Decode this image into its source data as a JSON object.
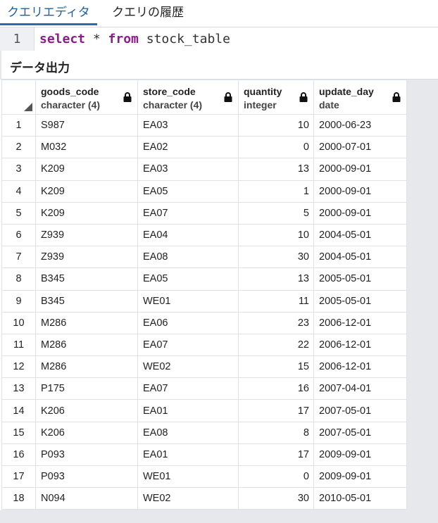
{
  "tabs": [
    {
      "label": "クエリエディタ",
      "active": true
    },
    {
      "label": "クエリの履歴",
      "active": false
    }
  ],
  "editor": {
    "line_number": "1",
    "tokens": [
      {
        "text": "select",
        "kind": "kw"
      },
      {
        "text": " * ",
        "kind": "txt"
      },
      {
        "text": "from",
        "kind": "kw"
      },
      {
        "text": " stock_table",
        "kind": "txt"
      }
    ]
  },
  "output": {
    "title": "データ出力",
    "columns": [
      {
        "name": "goods_code",
        "type": "character (4)"
      },
      {
        "name": "store_code",
        "type": "character (4)"
      },
      {
        "name": "quantity",
        "type": "integer"
      },
      {
        "name": "update_day",
        "type": "date"
      }
    ],
    "rows": [
      [
        "1",
        "S987",
        "EA03",
        "10",
        "2000-06-23"
      ],
      [
        "2",
        "M032",
        "EA02",
        "0",
        "2000-07-01"
      ],
      [
        "3",
        "K209",
        "EA03",
        "13",
        "2000-09-01"
      ],
      [
        "4",
        "K209",
        "EA05",
        "1",
        "2000-09-01"
      ],
      [
        "5",
        "K209",
        "EA07",
        "5",
        "2000-09-01"
      ],
      [
        "6",
        "Z939",
        "EA04",
        "10",
        "2004-05-01"
      ],
      [
        "7",
        "Z939",
        "EA08",
        "30",
        "2004-05-01"
      ],
      [
        "8",
        "B345",
        "EA05",
        "13",
        "2005-05-01"
      ],
      [
        "9",
        "B345",
        "WE01",
        "11",
        "2005-05-01"
      ],
      [
        "10",
        "M286",
        "EA06",
        "23",
        "2006-12-01"
      ],
      [
        "11",
        "M286",
        "EA07",
        "22",
        "2006-12-01"
      ],
      [
        "12",
        "M286",
        "WE02",
        "15",
        "2006-12-01"
      ],
      [
        "13",
        "P175",
        "EA07",
        "16",
        "2007-04-01"
      ],
      [
        "14",
        "K206",
        "EA01",
        "17",
        "2007-05-01"
      ],
      [
        "15",
        "K206",
        "EA08",
        "8",
        "2007-05-01"
      ],
      [
        "16",
        "P093",
        "EA01",
        "17",
        "2009-09-01"
      ],
      [
        "17",
        "P093",
        "WE01",
        "0",
        "2009-09-01"
      ],
      [
        "18",
        "N094",
        "WE02",
        "30",
        "2010-05-01"
      ]
    ]
  },
  "colors": {
    "keyword": "#8b1d8b",
    "active_tab": "#2a6bb0"
  }
}
